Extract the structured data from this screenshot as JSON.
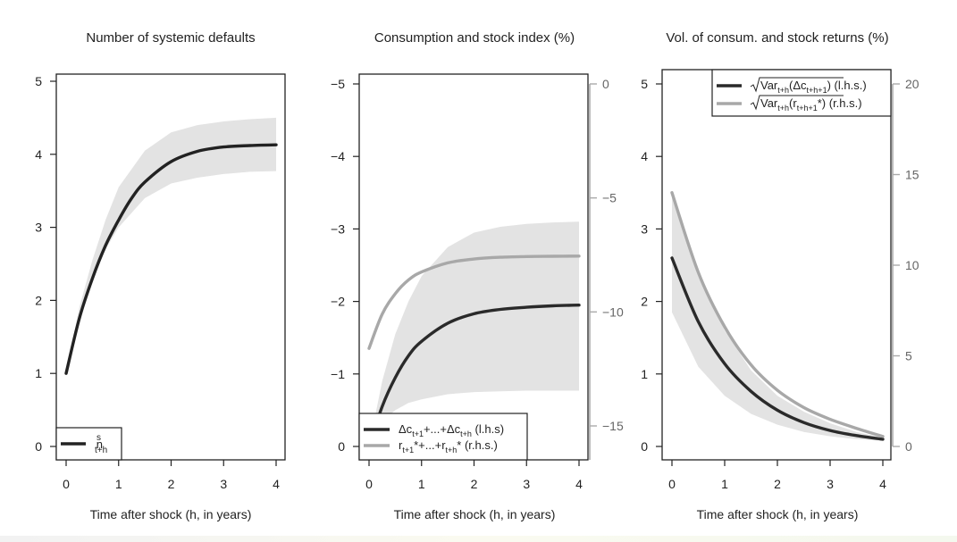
{
  "chart_data": [
    {
      "type": "line",
      "title": "Number of systemic defaults",
      "xlabel": "Time after shock (h, in years)",
      "xlim": [
        0,
        4
      ],
      "ylim": [
        0,
        5
      ],
      "xticks": [
        "0",
        "1",
        "2",
        "3",
        "4"
      ],
      "yticks": [
        "0",
        "1",
        "2",
        "3",
        "4",
        "5"
      ],
      "band": {
        "x": [
          0,
          0.25,
          0.5,
          0.75,
          1,
          1.5,
          2,
          2.5,
          3,
          3.5,
          4
        ],
        "lower": [
          1.0,
          1.75,
          2.3,
          2.7,
          3.0,
          3.4,
          3.6,
          3.68,
          3.73,
          3.76,
          3.77
        ],
        "upper": [
          1.0,
          1.9,
          2.55,
          3.1,
          3.55,
          4.05,
          4.3,
          4.4,
          4.45,
          4.48,
          4.5
        ]
      },
      "series": [
        {
          "name": "n^s_{t+h}",
          "color": "#222222",
          "x": [
            0,
            0.25,
            0.5,
            0.75,
            1,
            1.25,
            1.5,
            2,
            2.5,
            3,
            3.5,
            4
          ],
          "values": [
            1.0,
            1.75,
            2.3,
            2.75,
            3.1,
            3.4,
            3.62,
            3.9,
            4.04,
            4.1,
            4.12,
            4.13
          ]
        }
      ],
      "legend": {
        "position": "bottom-left",
        "entries": [
          {
            "main": "n",
            "sup": "s",
            "sub": "t+h",
            "color": "#222222"
          }
        ]
      }
    },
    {
      "type": "line",
      "title": "Consumption and stock index (%)",
      "xlabel": "Time after shock (h, in years)",
      "xlim": [
        0,
        4
      ],
      "ylim": [
        -5,
        0
      ],
      "y2lim": [
        -16.3,
        0
      ],
      "xticks": [
        "0",
        "1",
        "2",
        "3",
        "4"
      ],
      "yticks": [
        "0",
        "−1",
        "−2",
        "−3",
        "−4",
        "−5"
      ],
      "y2ticks": [
        "0",
        "−5",
        "−10",
        "−15"
      ],
      "band": {
        "x": [
          0,
          0.25,
          0.5,
          0.75,
          1,
          1.5,
          2,
          2.5,
          3,
          3.5,
          4
        ],
        "lower": [
          0.0,
          -0.9,
          -1.55,
          -2.0,
          -2.35,
          -2.75,
          -2.95,
          -3.03,
          -3.07,
          -3.09,
          -3.1
        ],
        "upper": [
          0.0,
          -0.35,
          -0.5,
          -0.6,
          -0.65,
          -0.72,
          -0.75,
          -0.76,
          -0.77,
          -0.77,
          -0.77
        ]
      },
      "series": [
        {
          "name": "Δc_{t+1}+...+Δc_{t+h} (l.h.s)",
          "color": "#2a2a2a",
          "axis": "left",
          "x": [
            0,
            0.25,
            0.5,
            0.75,
            1,
            1.5,
            2,
            2.5,
            3,
            3.5,
            4
          ],
          "values": [
            0.0,
            -0.55,
            -0.95,
            -1.25,
            -1.45,
            -1.7,
            -1.83,
            -1.89,
            -1.92,
            -1.94,
            -1.95
          ]
        },
        {
          "name": "r_{t+1}*+...+r_{t+h}* (r.h.s.)",
          "color": "#a8a8a8",
          "axis": "right",
          "x": [
            0,
            0.25,
            0.5,
            0.75,
            1,
            1.5,
            2,
            2.5,
            3,
            3.5,
            4
          ],
          "values": [
            -11.6,
            -10.1,
            -9.2,
            -8.6,
            -8.25,
            -7.85,
            -7.68,
            -7.6,
            -7.57,
            -7.56,
            -7.55
          ]
        }
      ],
      "legend": {
        "position": "bottom-left",
        "entries": [
          {
            "text": "Δc",
            "sub": "t+1",
            "text2": "+...+Δc",
            "sub2": "t+h",
            "text3": " (l.h.s)",
            "color": "#2a2a2a"
          },
          {
            "text": "r",
            "sub": "t+1",
            "text2": "*+...+r",
            "sub2": "t+h",
            "text3": "* (r.h.s.)",
            "color": "#a8a8a8"
          }
        ]
      }
    },
    {
      "type": "line",
      "title": "Vol. of consum. and stock returns (%)",
      "xlabel": "Time after shock (h, in years)",
      "xlim": [
        0,
        4
      ],
      "ylim": [
        0,
        5
      ],
      "y2lim": [
        0,
        20
      ],
      "xticks": [
        "0",
        "1",
        "2",
        "3",
        "4"
      ],
      "yticks": [
        "0",
        "1",
        "2",
        "3",
        "4",
        "5"
      ],
      "y2ticks": [
        "0",
        "5",
        "10",
        "15",
        "20"
      ],
      "band": {
        "x": [
          0,
          0.5,
          1,
          1.5,
          2,
          2.5,
          3,
          3.5,
          4
        ],
        "lower": [
          1.85,
          1.1,
          0.7,
          0.45,
          0.3,
          0.2,
          0.14,
          0.1,
          0.08
        ],
        "upper": [
          3.5,
          2.4,
          1.6,
          1.05,
          0.7,
          0.48,
          0.32,
          0.2,
          0.12
        ]
      },
      "series": [
        {
          "name": "√Var_{t+h}(Δc_{t+h+1}) (l.h.s.)",
          "color": "#2a2a2a",
          "axis": "left",
          "x": [
            0,
            0.5,
            1,
            1.5,
            2,
            2.5,
            3,
            3.5,
            4
          ],
          "values": [
            2.6,
            1.72,
            1.14,
            0.76,
            0.5,
            0.33,
            0.22,
            0.15,
            0.1
          ]
        },
        {
          "name": "√Var_{t+h}(r_{t+h+1}*) (r.h.s.)",
          "color": "#a8a8a8",
          "axis": "right",
          "x": [
            0,
            0.5,
            1,
            1.5,
            2,
            2.5,
            3,
            3.5,
            4
          ],
          "values": [
            14.0,
            9.6,
            6.6,
            4.5,
            3.1,
            2.15,
            1.5,
            1.0,
            0.55
          ]
        }
      ],
      "legend": {
        "position": "top-right",
        "entries": [
          {
            "text": "Var",
            "sub": "t+h",
            "text2": "(Δc",
            "sub2": "t+h+1",
            "text3": ")",
            "tail": " (l.h.s.)",
            "color": "#2a2a2a"
          },
          {
            "text": "Var",
            "sub": "t+h",
            "text2": "(r",
            "sub2": "t+h+1",
            "text3": "*)",
            "tail": " (r.h.s.)",
            "color": "#a8a8a8"
          }
        ]
      }
    }
  ]
}
